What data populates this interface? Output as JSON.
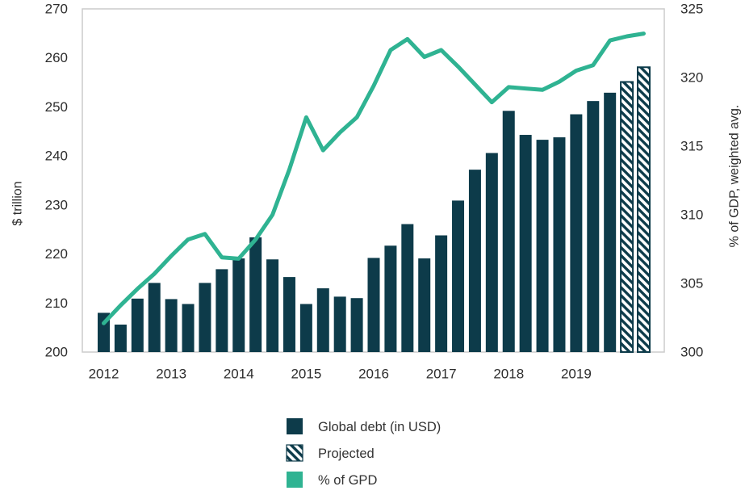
{
  "chart_data": {
    "type": "bar+line",
    "title": "",
    "periods": [
      "2012 Q1",
      "2012 Q2",
      "2012 Q3",
      "2012 Q4",
      "2013 Q1",
      "2013 Q2",
      "2013 Q3",
      "2013 Q4",
      "2014 Q1",
      "2014 Q2",
      "2014 Q3",
      "2014 Q4",
      "2015 Q1",
      "2015 Q2",
      "2015 Q3",
      "2015 Q4",
      "2016 Q1",
      "2016 Q2",
      "2016 Q3",
      "2016 Q4",
      "2017 Q1",
      "2017 Q2",
      "2017 Q3",
      "2017 Q4",
      "2018 Q1",
      "2018 Q2",
      "2018 Q3",
      "2018 Q4",
      "2019 Q1",
      "2019 Q2",
      "2019 Q3",
      "2019 Q4",
      "2020 Q1"
    ],
    "x_axis": {
      "tick_labels": [
        "2012",
        "2013",
        "2014",
        "2015",
        "2016",
        "2017",
        "2018",
        "2019"
      ]
    },
    "left_axis": {
      "title": "$ trillion",
      "tick_labels": [
        270,
        260,
        250,
        240,
        230,
        220,
        210,
        200
      ],
      "range": [
        200,
        270
      ]
    },
    "right_axis": {
      "title": "% of GDP, weighted avg.",
      "tick_labels": [
        325,
        320,
        315,
        310,
        305,
        300
      ],
      "range": [
        300,
        325
      ]
    },
    "series": [
      {
        "name": "Global debt (in USD)",
        "type": "bar",
        "axis": "left",
        "unit": "$ trillion",
        "projected_last_n": 2,
        "values": [
          208.0,
          205.6,
          210.9,
          214.1,
          210.8,
          209.8,
          214.1,
          216.9,
          219.1,
          223.4,
          218.9,
          215.3,
          209.8,
          213.0,
          211.3,
          211.0,
          219.2,
          221.7,
          226.1,
          219.1,
          223.8,
          230.9,
          237.2,
          240.6,
          249.2,
          244.3,
          243.3,
          243.8,
          248.5,
          251.2,
          252.9,
          255.1,
          258.1
        ]
      },
      {
        "name": "% of GPD",
        "type": "line",
        "axis": "right",
        "unit": "% of GDP",
        "values": [
          302.1,
          303.4,
          304.6,
          305.7,
          307.0,
          308.2,
          308.6,
          306.9,
          306.8,
          308.2,
          310.0,
          313.3,
          317.1,
          314.7,
          316.0,
          317.1,
          319.4,
          322.0,
          322.8,
          321.5,
          322.0,
          320.8,
          319.5,
          318.2,
          319.3,
          319.2,
          319.1,
          319.7,
          320.5,
          320.9,
          322.7,
          323.0,
          323.2
        ]
      }
    ],
    "legend": [
      {
        "label": "Global debt (in USD)",
        "swatch": "solid"
      },
      {
        "label": "Projected",
        "swatch": "hatched"
      },
      {
        "label": "% of GPD",
        "swatch": "line"
      }
    ],
    "grid": false,
    "legend_position": "bottom-center",
    "colors": {
      "bar": "#0d3b4a",
      "line": "#2fb392",
      "text": "#2d2d2d",
      "plot_border": "#cccccc",
      "background": "#ffffff"
    }
  }
}
